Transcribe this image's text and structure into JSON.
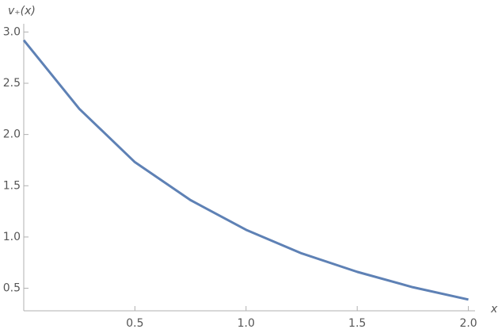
{
  "chart_data": {
    "type": "line",
    "y_label": "v₊(x)",
    "x_label": "x",
    "x": [
      0,
      0.25,
      0.5,
      0.75,
      1.0,
      1.25,
      1.5,
      1.75,
      2.0
    ],
    "series": [
      {
        "color": "#5e81b5",
        "values": [
          2.92,
          2.25,
          1.73,
          1.36,
          1.07,
          0.84,
          0.66,
          0.51,
          0.39
        ]
      }
    ],
    "xlim": [
      0,
      2.03
    ],
    "ylim": [
      0.28,
      3.08
    ],
    "xticks": [
      0.5,
      {
        "value": 1.0,
        "label": "1.0"
      },
      1.5,
      {
        "value": 2.0,
        "label": "2.0"
      }
    ],
    "yticks": [
      {
        "value": 0.5,
        "label": "0.5"
      },
      {
        "value": 1.0,
        "label": "1.0"
      },
      1.5,
      {
        "value": 2.0,
        "label": "2.0"
      },
      2.5,
      {
        "value": 3.0,
        "label": "3.0"
      }
    ]
  }
}
